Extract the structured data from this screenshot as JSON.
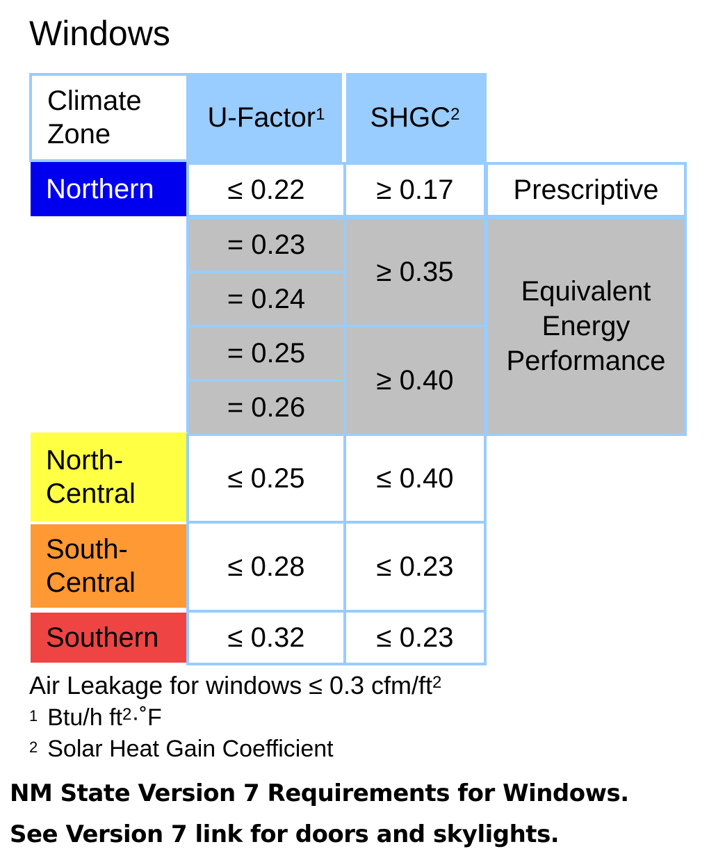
{
  "title": "Windows",
  "header": {
    "climate_zone": "Climate\nZone",
    "u_factor": "U-Factor",
    "u_factor_mark": "1",
    "shgc": "SHGC",
    "shgc_mark": "2"
  },
  "zones": {
    "northern": {
      "label": "Northern",
      "color": "#0000ee",
      "u": "≤ 0.22",
      "shgc": "≥ 0.17"
    },
    "north_central": {
      "label": "North-\nCentral",
      "color": "#ffff44",
      "u": "≤ 0.25",
      "shgc": "≤ 0.40"
    },
    "south_central": {
      "label": "South-\nCentral",
      "color": "#ff9933",
      "u": "≤ 0.28",
      "shgc": "≤ 0.23"
    },
    "southern": {
      "label": "Southern",
      "color": "#ee4444",
      "u": "≤ 0.32",
      "shgc": "≤ 0.23"
    }
  },
  "equivalent": {
    "u_values": [
      "= 0.23",
      "= 0.24",
      "= 0.25",
      "= 0.26"
    ],
    "shgc_values": [
      "≥ 0.35",
      "≥ 0.40"
    ]
  },
  "paths": {
    "prescriptive": "Prescriptive",
    "equivalent": "Equivalent\nEnergy\nPerformance"
  },
  "air_leakage": {
    "text": "Air Leakage for windows ≤ 0.3 cfm/ft",
    "mark": "2"
  },
  "footnotes": [
    {
      "mark": "1",
      "text": "Btu/h ft",
      "sup": "2",
      "suffix": "·˚F"
    },
    {
      "mark": "2",
      "text": "Solar Heat Gain Coefficient"
    }
  ],
  "caption": [
    "NM State Version 7 Requirements for Windows.",
    "See Version 7 link for doors and skylights."
  ]
}
